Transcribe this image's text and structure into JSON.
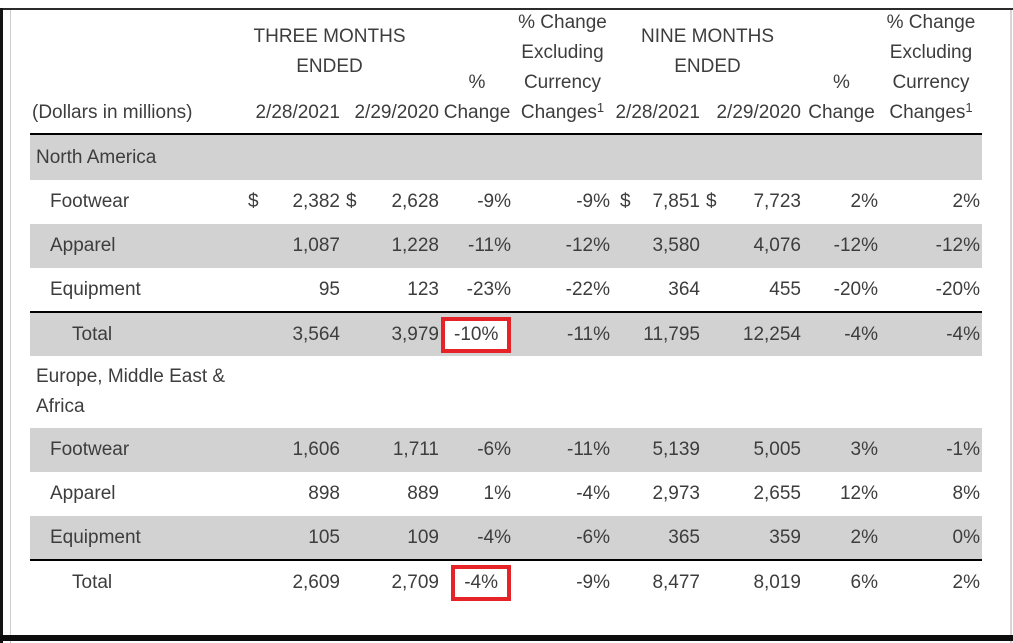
{
  "page": {
    "background": "#ffffff",
    "text_color": "#3d3d3d",
    "stripe_color": "#d2d2d2",
    "rule_color": "#000000",
    "highlight_color": "#e62328"
  },
  "table": {
    "units_label": "(Dollars in millions)",
    "group_headers": [
      "THREE MONTHS ENDED",
      "NINE MONTHS ENDED"
    ],
    "pct_change_label": "% Change",
    "pct_change_excluding_label": "% Change Excluding Currency Changes",
    "footnote_marker": "1",
    "dates": [
      "2/28/2021",
      "2/29/2020",
      "2/28/2021",
      "2/29/2020"
    ],
    "currency_symbol": "$",
    "sections": [
      {
        "name": "North America",
        "rows": [
          {
            "label": "Footwear",
            "dollar_cols": [
              0,
              1,
              4,
              5
            ],
            "values": [
              "2,382",
              "2,628",
              "-9%",
              "-9%",
              "7,851",
              "7,723",
              "2%",
              "2%"
            ]
          },
          {
            "label": "Apparel",
            "dollar_cols": [],
            "values": [
              "1,087",
              "1,228",
              "-11%",
              "-12%",
              "3,580",
              "4,076",
              "-12%",
              "-12%"
            ]
          },
          {
            "label": "Equipment",
            "dollar_cols": [],
            "values": [
              "95",
              "123",
              "-23%",
              "-22%",
              "364",
              "455",
              "-20%",
              "-20%"
            ]
          }
        ],
        "total": {
          "label": "Total",
          "highlighted_col": 2,
          "values": [
            "3,564",
            "3,979",
            "-10%",
            "-11%",
            "11,795",
            "12,254",
            "-4%",
            "-4%"
          ]
        }
      },
      {
        "name": "Europe, Middle East &\nAfrica",
        "rows": [
          {
            "label": "Footwear",
            "dollar_cols": [],
            "values": [
              "1,606",
              "1,711",
              "-6%",
              "-11%",
              "5,139",
              "5,005",
              "3%",
              "-1%"
            ]
          },
          {
            "label": "Apparel",
            "dollar_cols": [],
            "values": [
              "898",
              "889",
              "1%",
              "-4%",
              "2,973",
              "2,655",
              "12%",
              "8%"
            ]
          },
          {
            "label": "Equipment",
            "dollar_cols": [],
            "values": [
              "105",
              "109",
              "-4%",
              "-6%",
              "365",
              "359",
              "2%",
              "0%"
            ]
          }
        ],
        "total": {
          "label": "Total",
          "highlighted_col": 2,
          "values": [
            "2,609",
            "2,709",
            "-4%",
            "-9%",
            "8,477",
            "8,019",
            "6%",
            "2%"
          ]
        }
      }
    ]
  }
}
